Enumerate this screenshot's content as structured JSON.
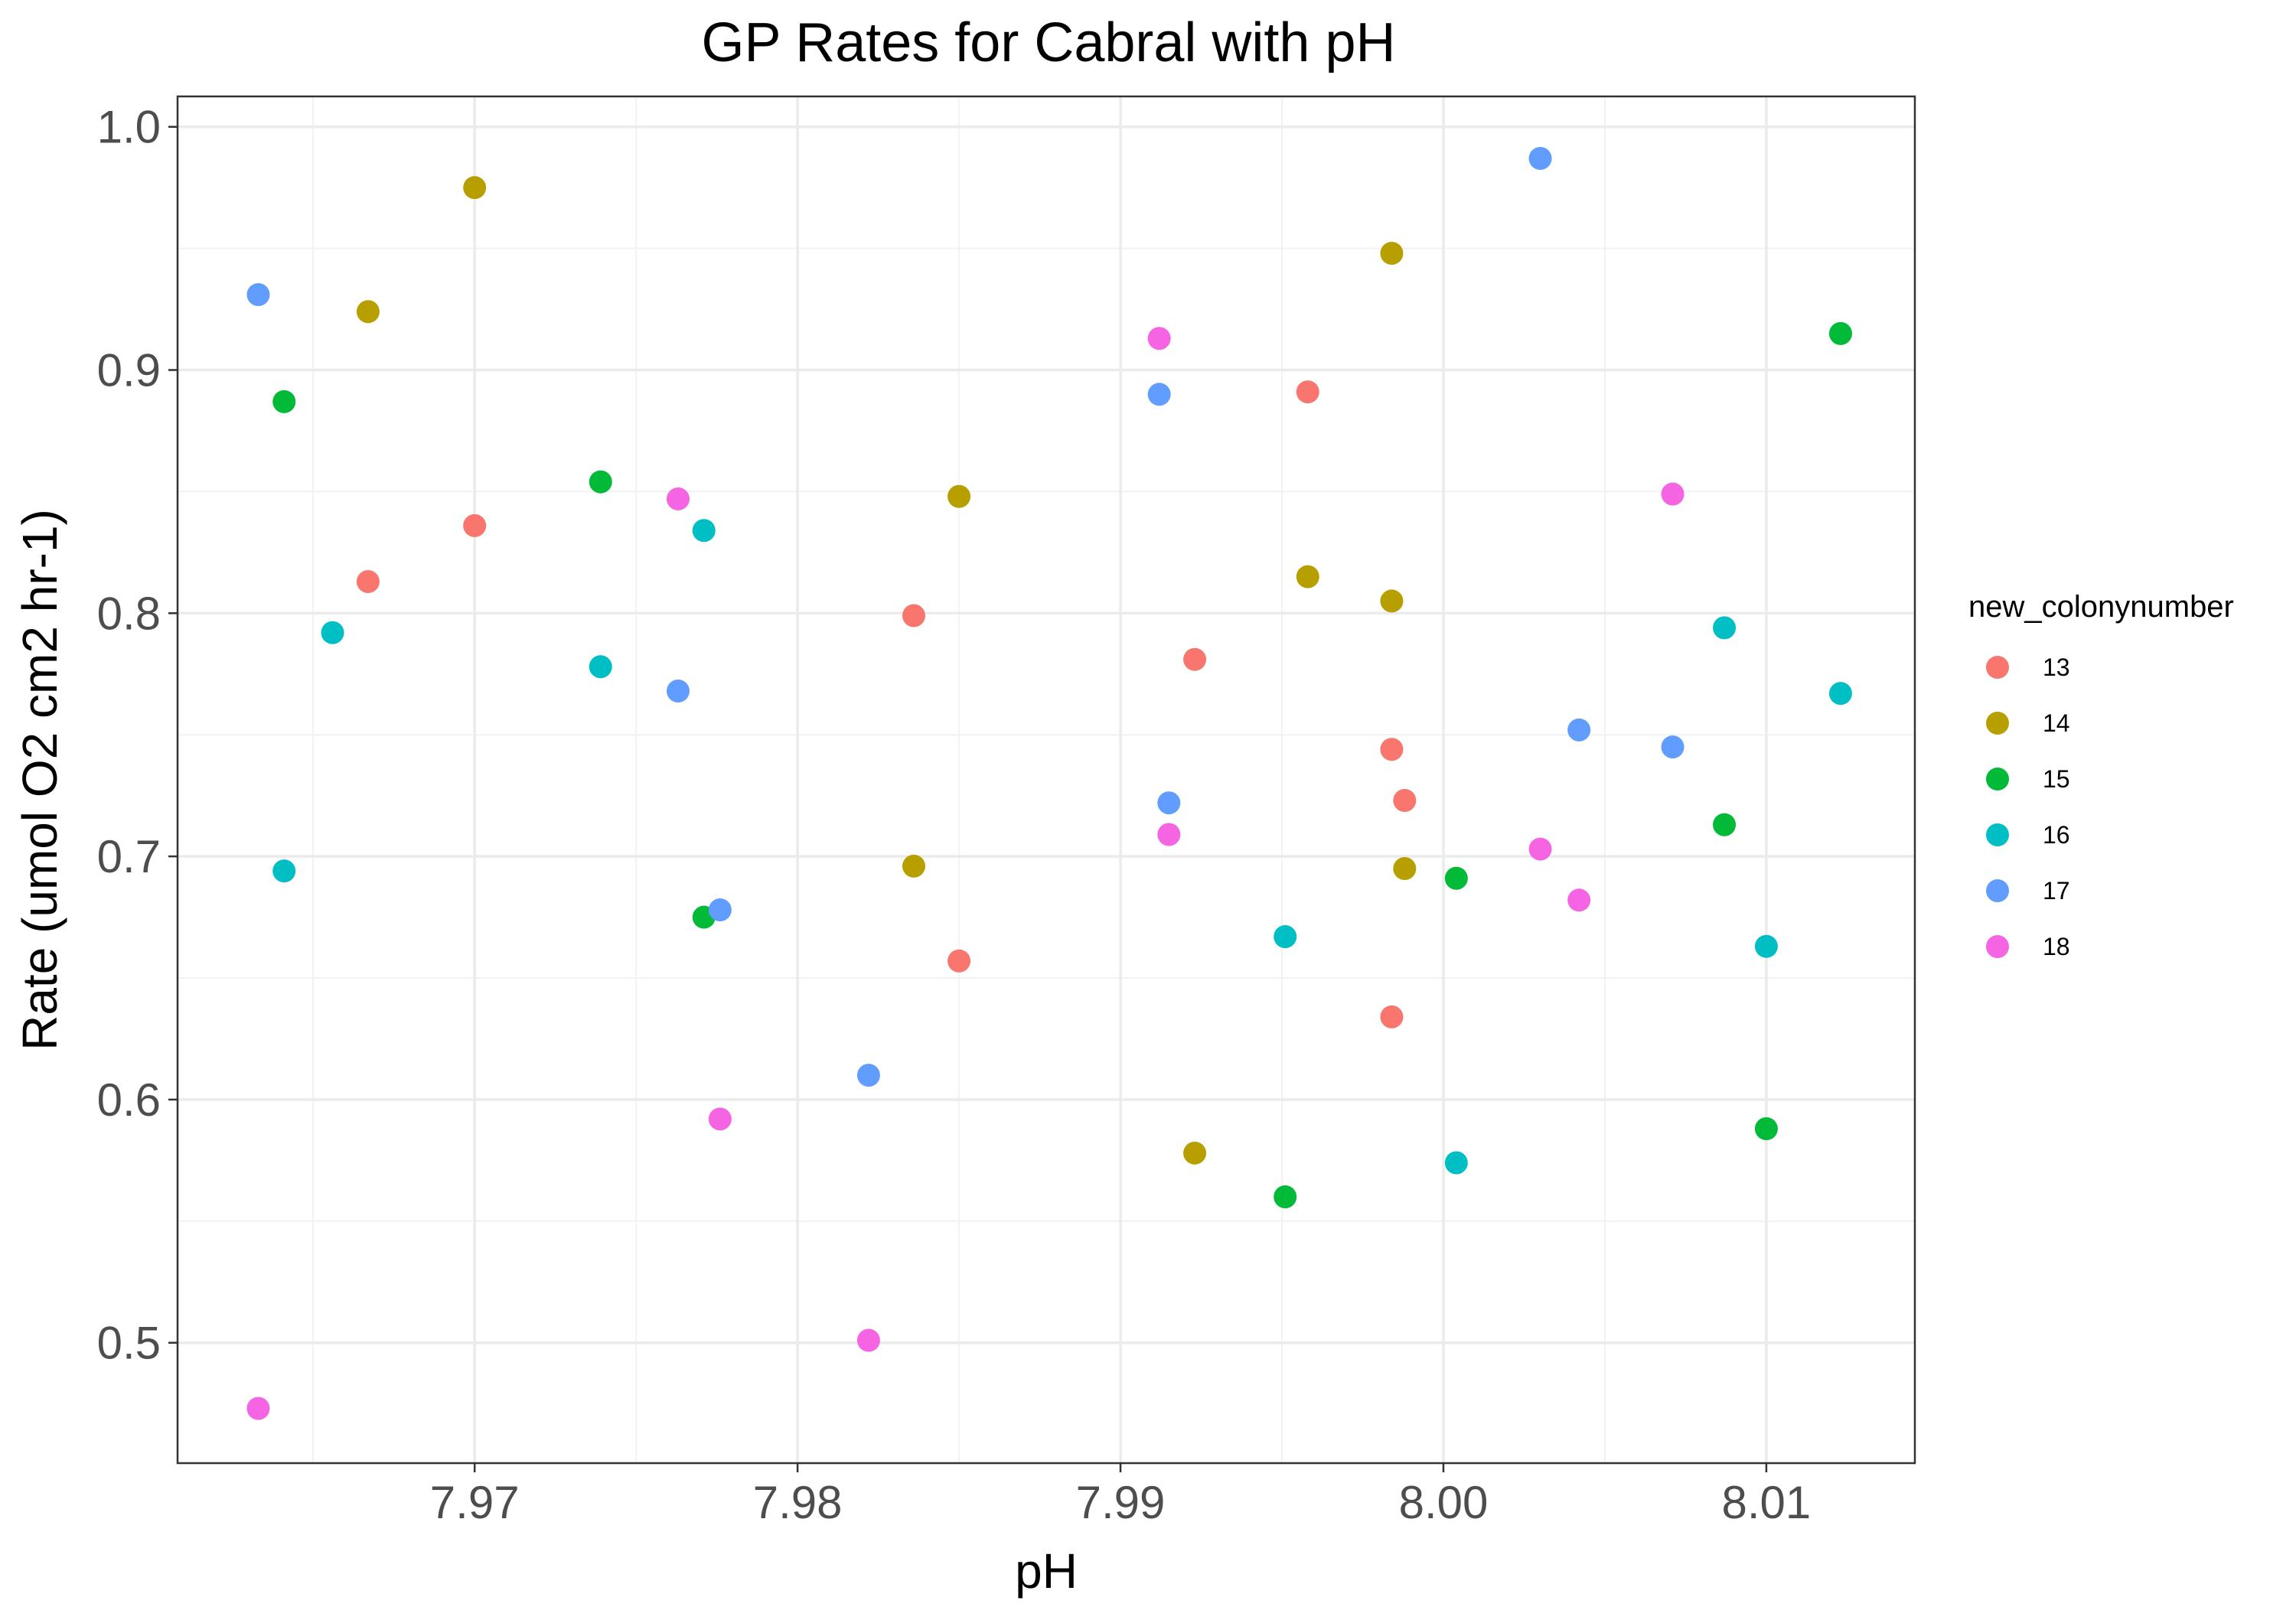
{
  "chart_data": {
    "type": "scatter",
    "title": "GP Rates for Cabral with pH",
    "xlabel": "pH",
    "ylabel": "Rate (umol O2 cm2 hr-1)",
    "xlim": [
      7.9608,
      8.0146
    ],
    "ylim": [
      0.4505,
      1.0125
    ],
    "x_major_ticks": [
      7.97,
      7.98,
      7.99,
      8.0,
      8.01
    ],
    "x_tick_labels": [
      "7.97",
      "7.98",
      "7.99",
      "8.00",
      "8.01"
    ],
    "x_minor_ticks": [
      7.965,
      7.975,
      7.985,
      7.995,
      8.005
    ],
    "y_major_ticks": [
      0.5,
      0.6,
      0.7,
      0.8,
      0.9,
      1.0
    ],
    "y_tick_labels": [
      "0.5",
      "0.6",
      "0.7",
      "0.8",
      "0.9",
      "1.0"
    ],
    "y_minor_ticks": [
      0.55,
      0.65,
      0.75,
      0.85,
      0.95
    ],
    "grid": true,
    "legend": {
      "title": "new_colonynumber",
      "position": "right"
    },
    "series": [
      {
        "name": "13",
        "color": "#F8766D",
        "points": [
          {
            "x": 7.9667,
            "y": 0.813
          },
          {
            "x": 7.97,
            "y": 0.836
          },
          {
            "x": 7.9836,
            "y": 0.799
          },
          {
            "x": 7.985,
            "y": 0.657
          },
          {
            "x": 7.9923,
            "y": 0.781
          },
          {
            "x": 7.9958,
            "y": 0.891
          },
          {
            "x": 7.9984,
            "y": 0.744
          },
          {
            "x": 7.9988,
            "y": 0.723
          },
          {
            "x": 7.9984,
            "y": 0.634
          }
        ]
      },
      {
        "name": "14",
        "color": "#B79F00",
        "points": [
          {
            "x": 7.9667,
            "y": 0.924
          },
          {
            "x": 7.97,
            "y": 0.975
          },
          {
            "x": 7.9836,
            "y": 0.696
          },
          {
            "x": 7.985,
            "y": 0.848
          },
          {
            "x": 7.9923,
            "y": 0.578
          },
          {
            "x": 7.9958,
            "y": 0.815
          },
          {
            "x": 7.9984,
            "y": 0.948
          },
          {
            "x": 7.9984,
            "y": 0.805
          },
          {
            "x": 7.9988,
            "y": 0.695
          }
        ]
      },
      {
        "name": "15",
        "color": "#00BA38",
        "points": [
          {
            "x": 7.9641,
            "y": 0.887
          },
          {
            "x": 7.9739,
            "y": 0.854
          },
          {
            "x": 7.9771,
            "y": 0.675
          },
          {
            "x": 7.9951,
            "y": 0.56
          },
          {
            "x": 8.0004,
            "y": 0.691
          },
          {
            "x": 8.0087,
            "y": 0.713
          },
          {
            "x": 8.01,
            "y": 0.588
          },
          {
            "x": 8.0123,
            "y": 0.915
          }
        ]
      },
      {
        "name": "16",
        "color": "#00BFC4",
        "points": [
          {
            "x": 7.9641,
            "y": 0.694
          },
          {
            "x": 7.9656,
            "y": 0.792
          },
          {
            "x": 7.9739,
            "y": 0.778
          },
          {
            "x": 7.9771,
            "y": 0.834
          },
          {
            "x": 7.9951,
            "y": 0.667
          },
          {
            "x": 8.0004,
            "y": 0.574
          },
          {
            "x": 8.0087,
            "y": 0.794
          },
          {
            "x": 8.01,
            "y": 0.663
          },
          {
            "x": 8.0123,
            "y": 0.767
          }
        ]
      },
      {
        "name": "17",
        "color": "#619CFF",
        "points": [
          {
            "x": 7.9633,
            "y": 0.931
          },
          {
            "x": 7.9763,
            "y": 0.768
          },
          {
            "x": 7.9776,
            "y": 0.678
          },
          {
            "x": 7.9822,
            "y": 0.61
          },
          {
            "x": 7.9912,
            "y": 0.89
          },
          {
            "x": 7.9915,
            "y": 0.722
          },
          {
            "x": 8.003,
            "y": 0.987
          },
          {
            "x": 8.0042,
            "y": 0.752
          },
          {
            "x": 8.0071,
            "y": 0.745
          }
        ]
      },
      {
        "name": "18",
        "color": "#F564E3",
        "points": [
          {
            "x": 7.9633,
            "y": 0.473
          },
          {
            "x": 7.9763,
            "y": 0.847
          },
          {
            "x": 7.9776,
            "y": 0.592
          },
          {
            "x": 7.9822,
            "y": 0.501
          },
          {
            "x": 7.9912,
            "y": 0.913
          },
          {
            "x": 7.9915,
            "y": 0.709
          },
          {
            "x": 8.003,
            "y": 0.703
          },
          {
            "x": 8.0042,
            "y": 0.682
          },
          {
            "x": 8.0071,
            "y": 0.849
          }
        ]
      }
    ]
  }
}
